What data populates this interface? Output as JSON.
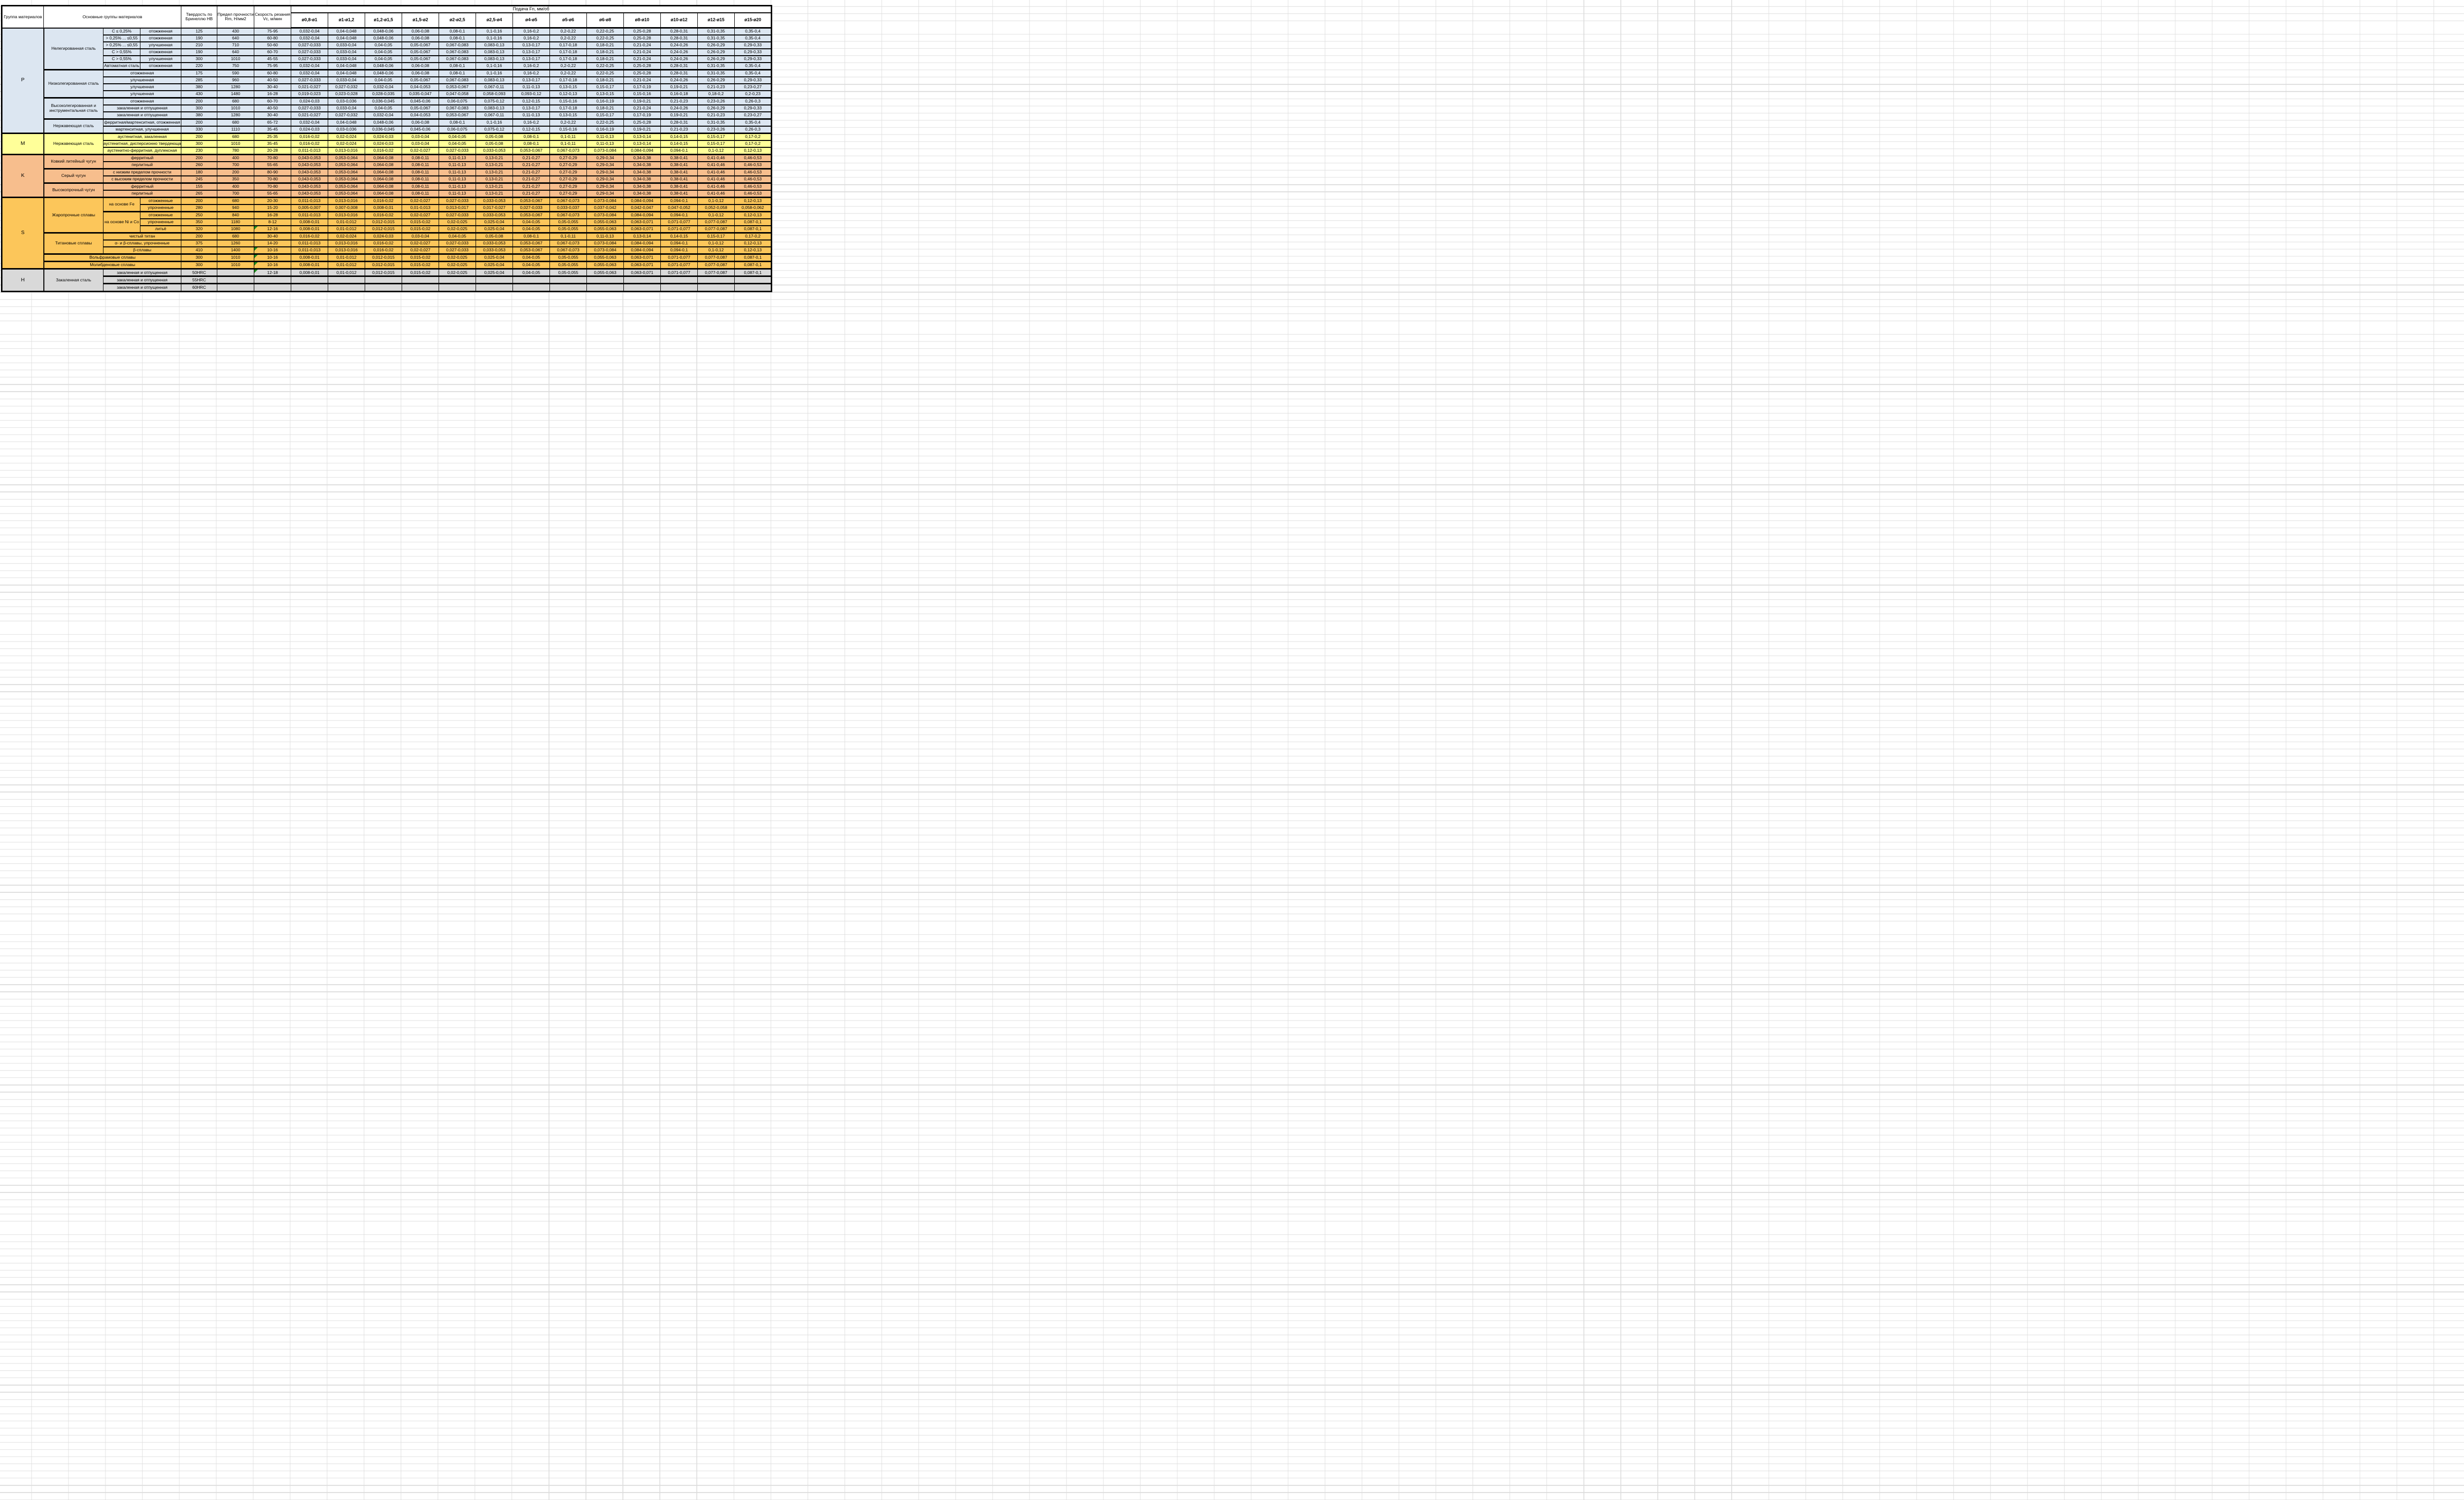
{
  "header": {
    "col_group": "Группа материалов",
    "col_main": "Основные группы материалов",
    "col_hb": "Твердость по Бринеллю HB",
    "col_rm": "Предел прочности Rm, Н/мм2",
    "col_vc": "Скорость резания Vc, м/мин",
    "feed_title": "Подача Fn, мм/об",
    "diameters": [
      "ø0,8-ø1",
      "ø1-ø1,2",
      "ø1,2-ø1,5",
      "ø1,5-ø2",
      "ø2-ø2,5",
      "ø2,5-ø4",
      "ø4-ø5",
      "ø5-ø6",
      "ø6-ø8",
      "ø8-ø10",
      "ø10-ø12",
      "ø12-ø15",
      "ø15-ø20"
    ]
  },
  "colors": {
    "group_p": "#DCE6F1",
    "group_m": "#FFFF99",
    "group_k": "#F7BE8D",
    "group_s": "#FCC65A",
    "group_h": "#D9D9D9",
    "flag_green": "#1E8F1E",
    "border": "#000000"
  },
  "feed_patterns": {
    "A": [
      "0,032-0,04",
      "0,04-0,048",
      "0,048-0,06",
      "0,06-0,08",
      "0,08-0,1",
      "0,1-0,16",
      "0,16-0,2",
      "0,2-0,22",
      "0,22-0,25",
      "0,25-0,28",
      "0,28-0,31",
      "0,31-0,35",
      "0,35-0,4"
    ],
    "B": [
      "0,027-0,033",
      "0,033-0,04",
      "0,04-0,05",
      "0,05-0,067",
      "0,067-0,083",
      "0,083-0,13",
      "0,13-0,17",
      "0,17-0,18",
      "0,18-0,21",
      "0,21-0,24",
      "0,24-0,26",
      "0,26-0,29",
      "0,29-0,33"
    ],
    "C": [
      "0,021-0,027",
      "0,027-0,032",
      "0,032-0,04",
      "0,04-0,053",
      "0,053-0,067",
      "0,067-0,11",
      "0,11-0,13",
      "0,13-0,15",
      "0,15-0,17",
      "0,17-0,19",
      "0,19-0,21",
      "0,21-0,23",
      "0,23-0,27"
    ],
    "D": [
      "0,019-0,023",
      "0,023-0,028",
      "0,028-0,035",
      "0,035-0,047",
      "0,047-0,058",
      "0,058-0,093",
      "0,093-0,12",
      "0,12-0,13",
      "0,13-0,15",
      "0,15-0,16",
      "0,16-0,18",
      "0,18-0,2",
      "0,2-0,23"
    ],
    "E": [
      "0,024-0,03",
      "0,03-0,036",
      "0,036-0,045",
      "0,045-0,06",
      "0,06-0,075",
      "0,075-0,12",
      "0,12-0,15",
      "0,15-0,16",
      "0,16-0,19",
      "0,19-0,21",
      "0,21-0,23",
      "0,23-0,26",
      "0,26-0,3"
    ],
    "F": [
      "0,016-0,02",
      "0,02-0,024",
      "0,024-0,03",
      "0,03-0,04",
      "0,04-0,05",
      "0,05-0,08",
      "0,08-0,1",
      "0,1-0,11",
      "0,11-0,13",
      "0,13-0,14",
      "0,14-0,15",
      "0,15-0,17",
      "0,17-0,2"
    ],
    "G": [
      "0,011-0,013",
      "0,013-0,016",
      "0,016-0,02",
      "0,02-0,027",
      "0,027-0,033",
      "0,033-0,053",
      "0,053-0,067",
      "0,067-0,073",
      "0,073-0,084",
      "0,084-0,094",
      "0,094-0,1",
      "0,1-0,12",
      "0,12-0,13"
    ],
    "I": [
      "0,005-0,007",
      "0,007-0,008",
      "0,008-0,01",
      "0,01-0,013",
      "0,013-0,017",
      "0,017-0,027",
      "0,027-0,033",
      "0,033-0,037",
      "0,037-0,042",
      "0,042-0,047",
      "0,047-0,052",
      "0,052-0,058",
      "0,058-0,062"
    ],
    "J": [
      "0,008-0,01",
      "0,01-0,012",
      "0,012-0,015",
      "0,015-0,02",
      "0,02-0,025",
      "0,025-0,04",
      "0,04-0,05",
      "0,05-0,055",
      "0,055-0,063",
      "0,063-0,071",
      "0,071-0,077",
      "0,077-0,087",
      "0,087-0,1"
    ],
    "K": [
      "0,043-0,053",
      "0,053-0,064",
      "0,064-0,08",
      "0,08-0,11",
      "0,11-0,13",
      "0,13-0,21",
      "0,21-0,27",
      "0,27-0,29",
      "0,29-0,34",
      "0,34-0,38",
      "0,38-0,41",
      "0,41-0,46",
      "0,46-0,53"
    ]
  },
  "table": {
    "rows": [
      {
        "g": "p",
        "cells": [
          {
            "t": "P",
            "rs": 15,
            "c": "grp"
          },
          {
            "t": "Нелегированная сталь",
            "rs": 6,
            "c": "mat"
          },
          {
            "t": "C ≤ 0,25%",
            "c": "sub"
          },
          {
            "t": "отожженная",
            "c": "sub"
          },
          {
            "t": "125"
          },
          {
            "t": "430"
          },
          {
            "t": "75-95"
          }
        ],
        "feed": "A"
      },
      {
        "g": "p",
        "cells": [
          {
            "t": "> 0,25% ... ≤0,55",
            "c": "sub"
          },
          {
            "t": "отожженная",
            "c": "sub"
          },
          {
            "t": "190"
          },
          {
            "t": "640"
          },
          {
            "t": "60-80"
          }
        ],
        "feed": "A"
      },
      {
        "g": "p",
        "cells": [
          {
            "t": "> 0,25% ... ≤0,55",
            "c": "sub"
          },
          {
            "t": "улучшенная",
            "c": "sub"
          },
          {
            "t": "210"
          },
          {
            "t": "710"
          },
          {
            "t": "50-60"
          }
        ],
        "feed": "B"
      },
      {
        "g": "p",
        "cells": [
          {
            "t": "C > 0,55%",
            "c": "sub"
          },
          {
            "t": "отожженная",
            "c": "sub"
          },
          {
            "t": "190"
          },
          {
            "t": "640"
          },
          {
            "t": "60-70"
          }
        ],
        "feed": "B"
      },
      {
        "g": "p",
        "cells": [
          {
            "t": "C > 0,55%",
            "c": "sub"
          },
          {
            "t": "улучшенная",
            "c": "sub"
          },
          {
            "t": "300"
          },
          {
            "t": "1010"
          },
          {
            "t": "45-55"
          }
        ],
        "feed": "B"
      },
      {
        "g": "p",
        "cells": [
          {
            "t": "Автоматная сталь",
            "c": "sub"
          },
          {
            "t": "отожженная",
            "c": "sub"
          },
          {
            "t": "220"
          },
          {
            "t": "750"
          },
          {
            "t": "75-95"
          }
        ],
        "feed": "A"
      },
      {
        "g": "p",
        "sep": true,
        "cells": [
          {
            "t": "Низколегированная сталь",
            "rs": 4,
            "c": "mat"
          },
          {
            "t": "отожженная",
            "cs": 2,
            "c": "sub"
          },
          {
            "t": "175"
          },
          {
            "t": "590"
          },
          {
            "t": "60-80"
          }
        ],
        "feed": "A"
      },
      {
        "g": "p",
        "cells": [
          {
            "t": "улучшенная",
            "cs": 2,
            "c": "sub"
          },
          {
            "t": "285"
          },
          {
            "t": "960"
          },
          {
            "t": "40-50"
          }
        ],
        "feed": "B"
      },
      {
        "g": "p",
        "cells": [
          {
            "t": "улучшенная",
            "cs": 2,
            "c": "sub"
          },
          {
            "t": "380"
          },
          {
            "t": "1280"
          },
          {
            "t": "30-40"
          }
        ],
        "feed": "C"
      },
      {
        "g": "p",
        "cells": [
          {
            "t": "улучшенная",
            "cs": 2,
            "c": "sub"
          },
          {
            "t": "430"
          },
          {
            "t": "1480"
          },
          {
            "t": "16-28"
          }
        ],
        "feed": "D"
      },
      {
        "g": "p",
        "sep": true,
        "cells": [
          {
            "t": "Высоколегированная и инструментальная сталь",
            "rs": 3,
            "c": "mat"
          },
          {
            "t": "отожженная",
            "cs": 2,
            "c": "sub"
          },
          {
            "t": "200"
          },
          {
            "t": "680"
          },
          {
            "t": "60-70"
          }
        ],
        "feed": "E"
      },
      {
        "g": "p",
        "cells": [
          {
            "t": "закаленная и отпущенная",
            "cs": 2,
            "c": "sub"
          },
          {
            "t": "300"
          },
          {
            "t": "1010"
          },
          {
            "t": "40-50"
          }
        ],
        "feed": "B"
      },
      {
        "g": "p",
        "cells": [
          {
            "t": "закаленная и отпущенная",
            "cs": 2,
            "c": "sub"
          },
          {
            "t": "380"
          },
          {
            "t": "1280"
          },
          {
            "t": "30-40"
          }
        ],
        "feed": "C"
      },
      {
        "g": "p",
        "sep": true,
        "cells": [
          {
            "t": "Нержавеющая сталь",
            "rs": 2,
            "c": "mat"
          },
          {
            "t": "ферритная/мартенситная, отожженная",
            "cs": 2,
            "c": "sub"
          },
          {
            "t": "200"
          },
          {
            "t": "680"
          },
          {
            "t": "65-72"
          }
        ],
        "feed": "A"
      },
      {
        "g": "p",
        "cells": [
          {
            "t": "мартенситная, улучшенная",
            "cs": 2,
            "c": "sub"
          },
          {
            "t": "330"
          },
          {
            "t": "1110"
          },
          {
            "t": "35-45"
          }
        ],
        "feed": "E"
      },
      {
        "g": "m",
        "sep": true,
        "cells": [
          {
            "t": "M",
            "rs": 3,
            "c": "grp"
          },
          {
            "t": "Нержавеющая сталь",
            "rs": 3,
            "c": "mat"
          },
          {
            "t": "аустенитная, закаленная",
            "cs": 2,
            "c": "sub"
          },
          {
            "t": "200"
          },
          {
            "t": "680"
          },
          {
            "t": "25-35"
          }
        ],
        "feed": "F"
      },
      {
        "g": "m",
        "cells": [
          {
            "t": "аустенитная, дисперсионно твердеющая",
            "cs": 2,
            "c": "sub"
          },
          {
            "t": "300"
          },
          {
            "t": "1010"
          },
          {
            "t": "35-45"
          }
        ],
        "feed": "F"
      },
      {
        "g": "m",
        "cells": [
          {
            "t": "аустенитно-ферритная, дуплексная",
            "cs": 2,
            "c": "sub"
          },
          {
            "t": "230"
          },
          {
            "t": "780"
          },
          {
            "t": "20-28"
          }
        ],
        "feed": "G"
      },
      {
        "g": "k",
        "sep": true,
        "cells": [
          {
            "t": "K",
            "rs": 6,
            "c": "grp"
          },
          {
            "t": "Ковкий литейный чугун",
            "rs": 2,
            "c": "mat"
          },
          {
            "t": "ферритный",
            "cs": 2,
            "c": "sub"
          },
          {
            "t": "200"
          },
          {
            "t": "400"
          },
          {
            "t": "70-80"
          }
        ],
        "feed": "K"
      },
      {
        "g": "k",
        "cells": [
          {
            "t": "перлитный",
            "cs": 2,
            "c": "sub"
          },
          {
            "t": "260"
          },
          {
            "t": "700"
          },
          {
            "t": "55-65"
          }
        ],
        "feed": "K"
      },
      {
        "g": "k",
        "sep": true,
        "cells": [
          {
            "t": "Серый чугун",
            "rs": 2,
            "c": "mat"
          },
          {
            "t": "с низким пределом прочности",
            "cs": 2,
            "c": "sub"
          },
          {
            "t": "180"
          },
          {
            "t": "200"
          },
          {
            "t": "80-90"
          }
        ],
        "feed": "K"
      },
      {
        "g": "k",
        "cells": [
          {
            "t": "с высоким пределом прочности",
            "cs": 2,
            "c": "sub"
          },
          {
            "t": "245"
          },
          {
            "t": "350"
          },
          {
            "t": "70-80"
          }
        ],
        "feed": "K"
      },
      {
        "g": "k",
        "sep": true,
        "cells": [
          {
            "t": "Высокопрочный чугун",
            "rs": 2,
            "c": "mat"
          },
          {
            "t": "ферритный",
            "cs": 2,
            "c": "sub"
          },
          {
            "t": "155"
          },
          {
            "t": "400"
          },
          {
            "t": "70-80"
          }
        ],
        "feed": "K"
      },
      {
        "g": "k",
        "cells": [
          {
            "t": "перлитный",
            "cs": 2,
            "c": "sub"
          },
          {
            "t": "265"
          },
          {
            "t": "700"
          },
          {
            "t": "55-65"
          }
        ],
        "feed": "K"
      },
      {
        "g": "s",
        "sep": true,
        "cells": [
          {
            "t": "S",
            "rs": 10,
            "c": "grp"
          },
          {
            "t": "Жаропрочные сплавы",
            "rs": 5,
            "c": "mat"
          },
          {
            "t": "на основе Fe",
            "rs": 2,
            "c": "sub"
          },
          {
            "t": "отожженные",
            "c": "sub"
          },
          {
            "t": "200"
          },
          {
            "t": "680"
          },
          {
            "t": "20-30"
          }
        ],
        "feed": "G"
      },
      {
        "g": "s",
        "cells": [
          {
            "t": "упрочненные",
            "c": "sub"
          },
          {
            "t": "280"
          },
          {
            "t": "940"
          },
          {
            "t": "15-20"
          }
        ],
        "feed": "I"
      },
      {
        "g": "s",
        "sep": true,
        "cells": [
          {
            "t": "на основе Ni и Co",
            "rs": 3,
            "c": "sub"
          },
          {
            "t": "отожженные",
            "c": "sub"
          },
          {
            "t": "250"
          },
          {
            "t": "840"
          },
          {
            "t": "16-28"
          }
        ],
        "feed": "G"
      },
      {
        "g": "s",
        "cells": [
          {
            "t": "упрочненные",
            "c": "sub"
          },
          {
            "t": "350"
          },
          {
            "t": "1180"
          },
          {
            "t": "8-12"
          }
        ],
        "feed": "J"
      },
      {
        "g": "s",
        "cells": [
          {
            "t": "литьё",
            "c": "sub"
          },
          {
            "t": "320"
          },
          {
            "t": "1080"
          },
          {
            "t": "12-16",
            "g": 1
          }
        ],
        "feed": "J"
      },
      {
        "g": "s",
        "sep": true,
        "cells": [
          {
            "t": "Титановые сплавы",
            "rs": 3,
            "c": "mat"
          },
          {
            "t": "чистый титан",
            "cs": 2,
            "c": "sub"
          },
          {
            "t": "200"
          },
          {
            "t": "680"
          },
          {
            "t": "30-40"
          }
        ],
        "feed": "F"
      },
      {
        "g": "s",
        "cells": [
          {
            "t": "α- и β-сплавы, упрочненные",
            "cs": 2,
            "c": "sub"
          },
          {
            "t": "375"
          },
          {
            "t": "1260"
          },
          {
            "t": "14-20"
          }
        ],
        "feed": "G"
      },
      {
        "g": "s",
        "cells": [
          {
            "t": "β-сплавы",
            "cs": 2,
            "c": "sub"
          },
          {
            "t": "410"
          },
          {
            "t": "1400"
          },
          {
            "t": "10-16",
            "g": 1
          }
        ],
        "feed": "G"
      },
      {
        "g": "s",
        "sep": true,
        "cells": [
          {
            "t": "Вольфрамовые сплавы",
            "cs": 3,
            "c": "mat"
          },
          {
            "t": "300"
          },
          {
            "t": "1010"
          },
          {
            "t": "10-16",
            "g": 1
          }
        ],
        "feed": "J"
      },
      {
        "g": "s",
        "sep": true,
        "cells": [
          {
            "t": "Молибденовые сплавы",
            "cs": 3,
            "c": "mat"
          },
          {
            "t": "300"
          },
          {
            "t": "1010"
          },
          {
            "t": "10-16",
            "g": 1
          }
        ],
        "feed": "J"
      },
      {
        "g": "h",
        "sep": true,
        "cells": [
          {
            "t": "H",
            "rs": 3,
            "c": "grp"
          },
          {
            "t": "Закаленная сталь",
            "rs": 3,
            "c": "mat"
          },
          {
            "t": "закаленная и отпущенная",
            "cs": 2,
            "c": "sub"
          },
          {
            "t": "50HRC"
          },
          {
            "t": ""
          },
          {
            "t": "12-18",
            "g": 1
          }
        ],
        "feed": ""
      },
      {
        "g": "h",
        "sep": true,
        "cells": [
          {
            "t": "закаленная и отпущенная",
            "cs": 2,
            "c": "sub"
          },
          {
            "t": "55HRC"
          },
          {
            "t": ""
          },
          {
            "t": ""
          }
        ],
        "feed": ""
      },
      {
        "g": "h",
        "sep": true,
        "cells": [
          {
            "t": "закаленная и отпущенная",
            "cs": 2,
            "c": "sub"
          },
          {
            "t": "60HRC"
          },
          {
            "t": ""
          },
          {
            "t": ""
          }
        ],
        "feed": ""
      }
    ],
    "row35_feed_override": "J"
  }
}
